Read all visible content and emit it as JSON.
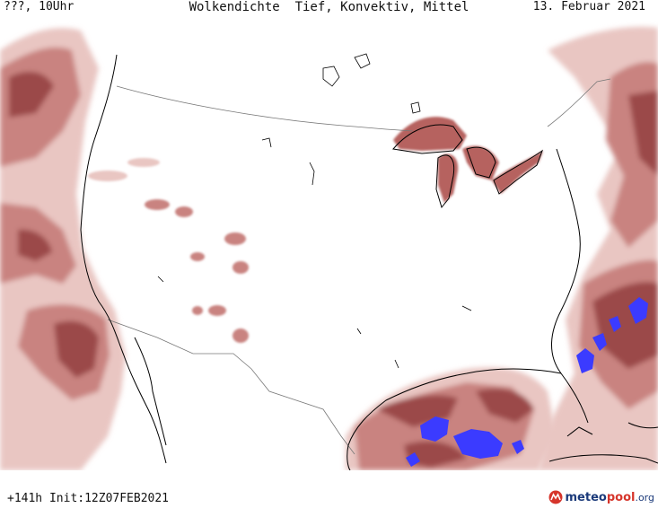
{
  "header": {
    "left_label": "???, 10Uhr",
    "title": "Wolkendichte  Tief, Konvektiv, Mittel",
    "date": "13. Februar 2021"
  },
  "footer": {
    "run_info": "+141h Init:12Z07FEB2021",
    "brand_part1": "meteo",
    "brand_part2": "pool",
    "brand_suffix": ".org"
  },
  "colors": {
    "cloud_light": "#e9c6c2",
    "cloud_medium": "#c98380",
    "cloud_dark": "#9b4a48",
    "convective": "#3b3bff",
    "coast": "#000000",
    "border": "#777777"
  }
}
